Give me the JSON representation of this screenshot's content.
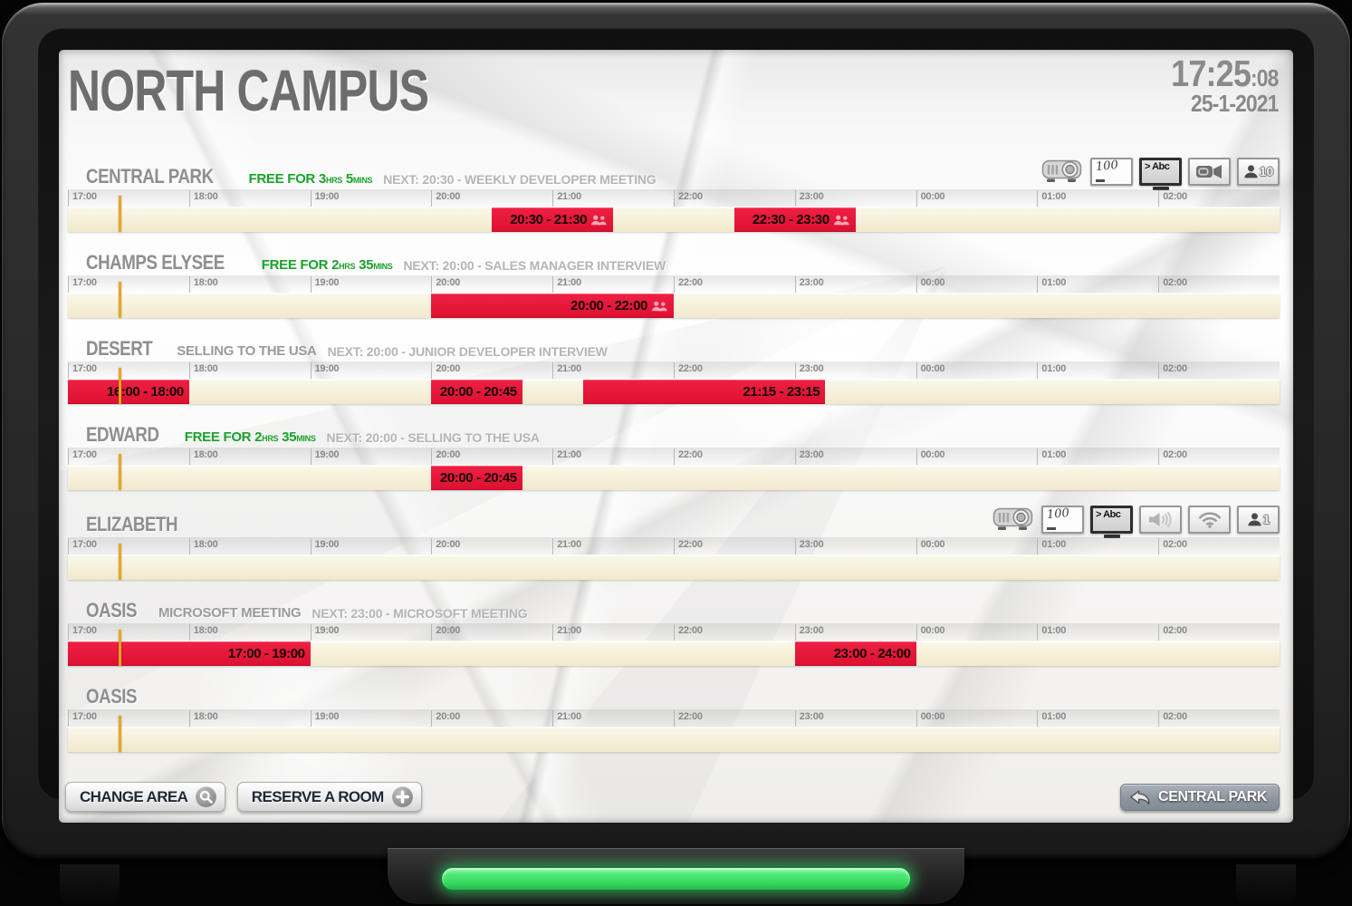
{
  "header": {
    "title": "NORTH CAMPUS",
    "time": "17:25",
    "seconds": ":08",
    "date": "25-1-2021"
  },
  "timeline": {
    "start": 17,
    "span": 10,
    "now": 17.42,
    "ticks": [
      "17:00",
      "18:00",
      "19:00",
      "20:00",
      "21:00",
      "22:00",
      "23:00",
      "00:00",
      "01:00",
      "02:00"
    ]
  },
  "colors": {
    "booking_red": "#DD1031",
    "now_line_orange": "#E7A51E",
    "free_green": "#1BA12C",
    "bar_cream": "#F1E9CC",
    "led_green": "#35D95E"
  },
  "rooms": [
    {
      "name": "CENTRAL PARK",
      "status": {
        "type": "free",
        "prefix": "FREE FOR",
        "hours": "3",
        "hours_unit": "HRS",
        "minutes": "5",
        "minutes_unit": "MINS"
      },
      "next": "NEXT: 20:30 - WEEKLY DEVELOPER MEETING",
      "amenities": [
        {
          "icon": "projector"
        },
        {
          "icon": "whiteboard",
          "label": "100"
        },
        {
          "icon": "tv",
          "label": "> Abc"
        },
        {
          "icon": "camera"
        },
        {
          "icon": "capacity",
          "label": "10"
        }
      ],
      "bookings": [
        {
          "label": "20:30 - 21:30",
          "start": 20.5,
          "end": 21.5,
          "attendees": true
        },
        {
          "label": "22:30 - 23:30",
          "start": 22.5,
          "end": 23.5,
          "attendees": true
        }
      ]
    },
    {
      "name": "CHAMPS ELYSEE",
      "status": {
        "type": "free",
        "prefix": "FREE FOR",
        "hours": "2",
        "hours_unit": "HRS",
        "minutes": "35",
        "minutes_unit": "MINS"
      },
      "next": "NEXT: 20:00 - SALES MANAGER INTERVIEW",
      "amenities": [],
      "bookings": [
        {
          "label": "20:00 - 22:00",
          "start": 20,
          "end": 22,
          "attendees": true
        }
      ]
    },
    {
      "name": "DESERT",
      "status": {
        "type": "busy",
        "text": "SELLING TO THE USA"
      },
      "next": "NEXT: 20:00 - JUNIOR DEVELOPER INTERVIEW",
      "amenities": [],
      "bookings": [
        {
          "label": "16:00 - 18:00",
          "start": 16,
          "end": 18,
          "attendees": false
        },
        {
          "label": "20:00 - 20:45",
          "start": 20,
          "end": 20.75,
          "attendees": false
        },
        {
          "label": "21:15 - 23:15",
          "start": 21.25,
          "end": 23.25,
          "attendees": false
        }
      ]
    },
    {
      "name": "EDWARD",
      "status": {
        "type": "free",
        "prefix": "FREE FOR",
        "hours": "2",
        "hours_unit": "HRS",
        "minutes": "35",
        "minutes_unit": "MINS"
      },
      "next": "NEXT: 20:00 - SELLING TO THE USA",
      "amenities": [],
      "bookings": [
        {
          "label": "20:00 - 20:45",
          "start": 20,
          "end": 20.75,
          "attendees": false
        }
      ]
    },
    {
      "name": "ELIZABETH",
      "status": {
        "type": "none"
      },
      "next": "",
      "amenities": [
        {
          "icon": "projector"
        },
        {
          "icon": "whiteboard",
          "label": "100"
        },
        {
          "icon": "tv",
          "label": "> Abc"
        },
        {
          "icon": "speaker"
        },
        {
          "icon": "wifi"
        },
        {
          "icon": "capacity",
          "label": "1"
        }
      ],
      "bookings": []
    },
    {
      "name": "OASIS",
      "status": {
        "type": "busy",
        "text": "MICROSOFT MEETING"
      },
      "next": "NEXT: 23:00 - MICROSOFT MEETING",
      "amenities": [],
      "bookings": [
        {
          "label": "17:00 - 19:00",
          "start": 17,
          "end": 19,
          "attendees": false
        },
        {
          "label": "23:00 - 24:00",
          "start": 23,
          "end": 24,
          "attendees": false
        }
      ]
    },
    {
      "name": "OASIS",
      "status": {
        "type": "none"
      },
      "next": "",
      "amenities": [],
      "bookings": []
    }
  ],
  "footer": {
    "change_area": "CHANGE AREA",
    "reserve_room": "RESERVE A ROOM",
    "back_button": "CENTRAL PARK"
  }
}
